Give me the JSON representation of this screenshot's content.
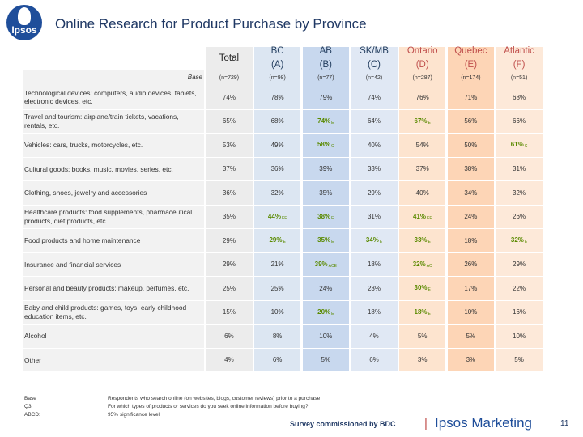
{
  "logo": {
    "text": "Ipsos"
  },
  "title": "Online Research for Product Purchase by Province",
  "columns": [
    {
      "name": "Total",
      "letter": "",
      "base": "(n=729)"
    },
    {
      "name": "BC",
      "letter": "(A)",
      "base": "(n=98)"
    },
    {
      "name": "AB",
      "letter": "(B)",
      "base": "(n=77)"
    },
    {
      "name": "SK/MB",
      "letter": "(C)",
      "base": "(n=42)"
    },
    {
      "name": "Ontario",
      "letter": "(D)",
      "base": "(n=287)"
    },
    {
      "name": "Quebec",
      "letter": "(E)",
      "base": "(n=174)"
    },
    {
      "name": "Atlantic",
      "letter": "(F)",
      "base": "(n=51)"
    }
  ],
  "base_label": "Base",
  "rows": [
    {
      "label": "Technological devices: computers, audio devices, tablets, electronic devices, etc.",
      "cells": [
        {
          "v": "74%"
        },
        {
          "v": "78%"
        },
        {
          "v": "79%"
        },
        {
          "v": "74%"
        },
        {
          "v": "76%"
        },
        {
          "v": "71%"
        },
        {
          "v": "68%"
        }
      ]
    },
    {
      "label": "Travel and tourism: airplane/train tickets, vacations, rentals, etc.",
      "cells": [
        {
          "v": "65%"
        },
        {
          "v": "68%"
        },
        {
          "v": "74%",
          "s": "E"
        },
        {
          "v": "64%"
        },
        {
          "v": "67%",
          "s": "E"
        },
        {
          "v": "56%"
        },
        {
          "v": "66%"
        }
      ]
    },
    {
      "label": "Vehicles: cars, trucks, motorcycles, etc.",
      "cells": [
        {
          "v": "53%"
        },
        {
          "v": "49%"
        },
        {
          "v": "58%",
          "s": "C"
        },
        {
          "v": "40%"
        },
        {
          "v": "54%"
        },
        {
          "v": "50%"
        },
        {
          "v": "61%",
          "s": "C"
        }
      ]
    },
    {
      "label": "Cultural goods: books, music, movies, series, etc.",
      "cells": [
        {
          "v": "37%"
        },
        {
          "v": "36%"
        },
        {
          "v": "39%"
        },
        {
          "v": "33%"
        },
        {
          "v": "37%"
        },
        {
          "v": "38%"
        },
        {
          "v": "31%"
        }
      ]
    },
    {
      "label": "Clothing, shoes, jewelry and accessories",
      "cells": [
        {
          "v": "36%"
        },
        {
          "v": "32%"
        },
        {
          "v": "35%"
        },
        {
          "v": "29%"
        },
        {
          "v": "40%"
        },
        {
          "v": "34%"
        },
        {
          "v": "32%"
        }
      ]
    },
    {
      "label": "Healthcare products: food supplements, pharmaceutical products, diet products, etc.",
      "cells": [
        {
          "v": "35%"
        },
        {
          "v": "44%",
          "s": "EF"
        },
        {
          "v": "38%",
          "s": "E"
        },
        {
          "v": "31%"
        },
        {
          "v": "41%",
          "s": "EF"
        },
        {
          "v": "24%"
        },
        {
          "v": "26%"
        }
      ]
    },
    {
      "label": "Food products and home maintenance",
      "cells": [
        {
          "v": "29%"
        },
        {
          "v": "29%",
          "s": "E"
        },
        {
          "v": "35%",
          "s": "E"
        },
        {
          "v": "34%",
          "s": "E"
        },
        {
          "v": "33%",
          "s": "E"
        },
        {
          "v": "18%"
        },
        {
          "v": "32%",
          "s": "E"
        }
      ]
    },
    {
      "label": "Insurance and financial services",
      "cells": [
        {
          "v": "29%"
        },
        {
          "v": "21%"
        },
        {
          "v": "39%",
          "s": "ACE"
        },
        {
          "v": "18%"
        },
        {
          "v": "32%",
          "s": "AC"
        },
        {
          "v": "26%"
        },
        {
          "v": "29%"
        }
      ]
    },
    {
      "label": "Personal and beauty products: makeup, perfumes, etc.",
      "cells": [
        {
          "v": "25%"
        },
        {
          "v": "25%"
        },
        {
          "v": "24%"
        },
        {
          "v": "23%"
        },
        {
          "v": "30%",
          "s": "E"
        },
        {
          "v": "17%"
        },
        {
          "v": "22%"
        }
      ]
    },
    {
      "label": "Baby and child products: games, toys, early childhood education items, etc.",
      "cells": [
        {
          "v": "15%"
        },
        {
          "v": "10%"
        },
        {
          "v": "20%",
          "s": "E"
        },
        {
          "v": "18%"
        },
        {
          "v": "18%",
          "s": "E"
        },
        {
          "v": "10%"
        },
        {
          "v": "16%"
        }
      ]
    },
    {
      "label": "Alcohol",
      "cells": [
        {
          "v": "6%"
        },
        {
          "v": "8%"
        },
        {
          "v": "10%"
        },
        {
          "v": "4%"
        },
        {
          "v": "5%"
        },
        {
          "v": "5%"
        },
        {
          "v": "10%"
        }
      ]
    },
    {
      "label": "Other",
      "cells": [
        {
          "v": "4%"
        },
        {
          "v": "6%"
        },
        {
          "v": "5%"
        },
        {
          "v": "6%"
        },
        {
          "v": "3%"
        },
        {
          "v": "3%"
        },
        {
          "v": "5%"
        }
      ]
    }
  ],
  "footer": {
    "labels": [
      "Base",
      "Q3:",
      "ABCD:"
    ],
    "lines": [
      "Respondents who search online (on websites, blogs, customer reviews) prior to a purchase",
      "For which types of products or services do you seek online information before buying?",
      "95% significance level"
    ]
  },
  "survey_text": "Survey commissioned by BDC",
  "separator": "|",
  "brand": "Ipsos Marketing",
  "page_number": "11",
  "colors": {
    "title": "#1f3864",
    "significant": "#5a8a00",
    "quebec_header": "#c0504d"
  }
}
